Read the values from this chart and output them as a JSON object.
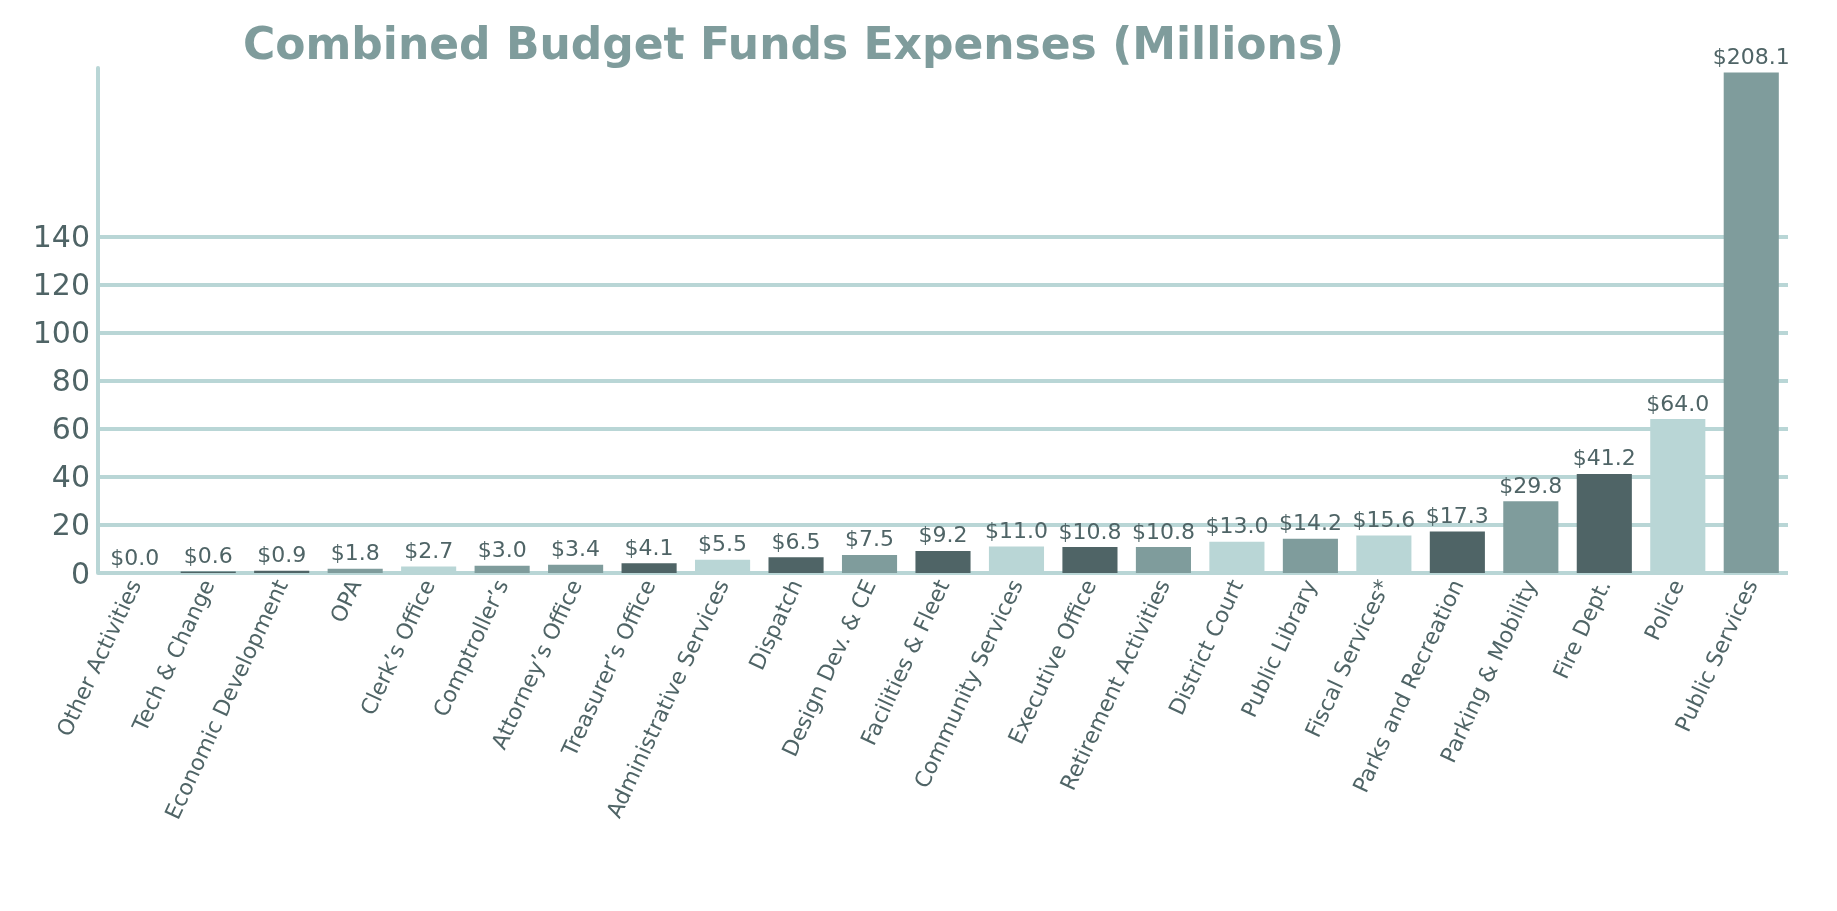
{
  "chart_data": {
    "type": "bar",
    "title": "Combined Budget Funds Expenses (Millions)",
    "categories": [
      "Other Activities",
      "Tech & Change",
      "Economic Development",
      "OPA",
      "Clerk’s Office",
      "Comptroller’s",
      "Attorney’s Office",
      "Treasurer’s Office",
      "Administrative Services",
      "Dispatch",
      "Design Dev. & CE",
      "Facilities & Fleet",
      "Community Services",
      "Executive Office",
      "Retirement Activities",
      "District Court",
      "Public Library",
      "Fiscal Services*",
      "Parks and Recreation",
      "Parking & Mobility",
      "Fire Dept.",
      "Police",
      "Public Services"
    ],
    "values": [
      0.0,
      0.6,
      0.9,
      1.8,
      2.7,
      3.0,
      3.4,
      4.1,
      5.5,
      6.5,
      7.5,
      9.2,
      11.0,
      10.8,
      10.8,
      13.0,
      14.2,
      15.6,
      17.3,
      29.8,
      41.2,
      64.0,
      208.1
    ],
    "value_labels": [
      "$0.0",
      "$0.6",
      "$0.9",
      "$1.8",
      "$2.7",
      "$3.0",
      "$3.4",
      "$4.1",
      "$5.5",
      "$6.5",
      "$7.5",
      "$9.2",
      "$11.0",
      "$10.8",
      "$10.8",
      "$13.0",
      "$14.2",
      "$15.6",
      "$17.3",
      "$29.8",
      "$41.2",
      "$64.0",
      "$208.1"
    ],
    "colors": [
      "#4f6466",
      "#4f6466",
      "#4f6466",
      "#7f9c9c",
      "#b9d6d6",
      "#7f9c9c",
      "#7f9c9c",
      "#4f6466",
      "#b9d6d6",
      "#4f6466",
      "#7f9c9c",
      "#4f6466",
      "#b9d6d6",
      "#4f6466",
      "#7f9c9c",
      "#b9d6d6",
      "#7f9c9c",
      "#b9d6d6",
      "#4f6466",
      "#7f9c9c",
      "#4f6466",
      "#b9d6d6",
      "#7f9c9c"
    ],
    "ylim": [
      0,
      210
    ],
    "yticks": [
      0,
      20,
      40,
      60,
      80,
      100,
      120,
      140
    ],
    "grid": "y"
  }
}
